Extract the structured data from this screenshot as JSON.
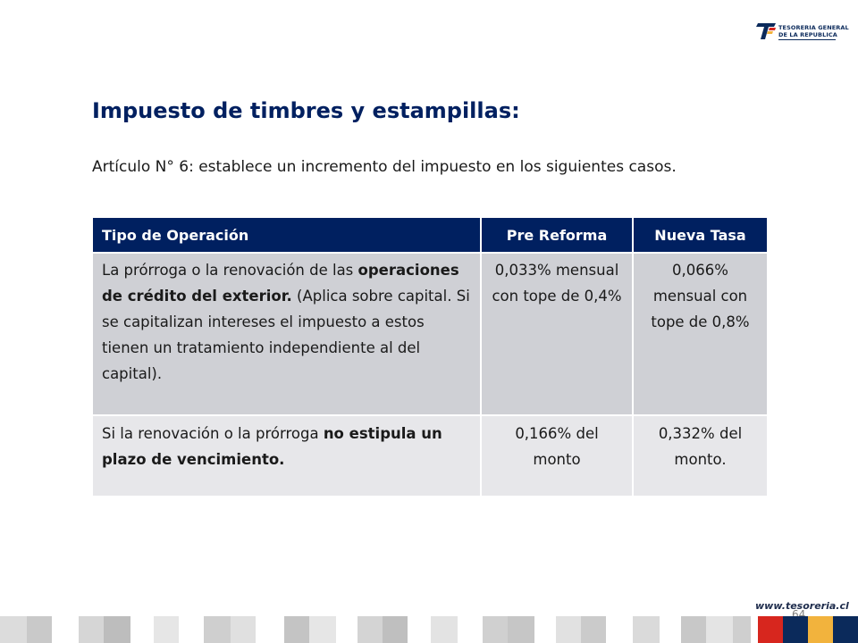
{
  "logo": {
    "line1": "TESORERIA GENERAL",
    "line2": "DE LA REPUBLICA",
    "brand_colors": {
      "blue": "#0b2a5b",
      "red": "#d7261e",
      "yellow": "#f2b33d"
    }
  },
  "title": "Impuesto de timbres y estampillas:",
  "intro": "Artículo N° 6: establece un incremento del impuesto en los siguientes casos.",
  "table": {
    "headers": {
      "tipo": "Tipo de Operación",
      "pre": "Pre Reforma",
      "nueva": "Nueva Tasa"
    },
    "rows": [
      {
        "tipo": {
          "p1": "La prórroga o la renovación de las ",
          "bold": "operaciones de crédito del exterior.",
          "p2": " (Aplica sobre capital. Si se capitalizan intereses el impuesto a estos tienen un tratamiento independiente al del capital)."
        },
        "pre": "0,033% mensual con tope de 0,4%",
        "nueva": "0,066% mensual con tope de 0,8%"
      },
      {
        "tipo": {
          "p1": "Si la renovación o la prórroga ",
          "bold": "no estipula un plazo de vencimiento.",
          "p2": ""
        },
        "pre": "0,166% del monto",
        "nueva": "0,332% del monto."
      }
    ]
  },
  "footer": {
    "site": "www.tesoreria.cl",
    "page_number": "64"
  },
  "colors": {
    "header_bg": "#002060",
    "title": "#002060",
    "row1_bg": "#cfd0d5",
    "row2_bg": "#e7e7ea"
  }
}
